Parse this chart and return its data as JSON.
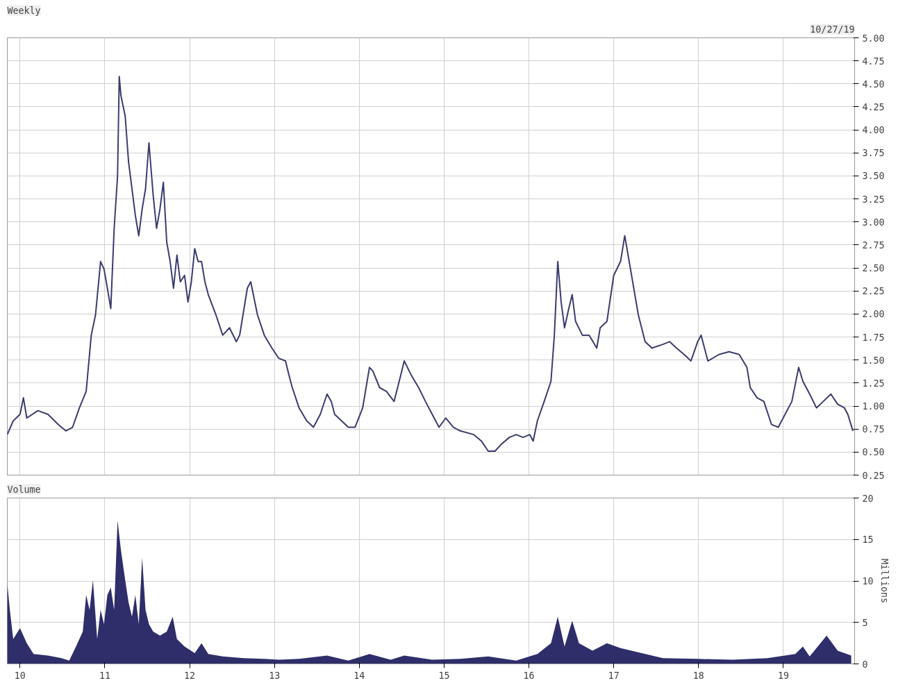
{
  "chart_data": [
    {
      "type": "line",
      "title": "Weekly",
      "annotations": [
        "10/27/19"
      ],
      "tick_labels": "y",
      "grid": true,
      "x": [
        2009.85,
        2009.92,
        2010.0,
        2010.04,
        2010.08,
        2010.21,
        2010.33,
        2010.45,
        2010.54,
        2010.62,
        2010.7,
        2010.78,
        2010.84,
        2010.89,
        2010.95,
        2010.99,
        2011.03,
        2011.07,
        2011.11,
        2011.15,
        2011.17,
        2011.19,
        2011.24,
        2011.28,
        2011.32,
        2011.36,
        2011.4,
        2011.44,
        2011.48,
        2011.52,
        2011.57,
        2011.61,
        2011.65,
        2011.69,
        2011.73,
        2011.77,
        2011.81,
        2011.85,
        2011.89,
        2011.94,
        2011.98,
        2012.02,
        2012.06,
        2012.1,
        2012.14,
        2012.18,
        2012.22,
        2012.31,
        2012.39,
        2012.47,
        2012.55,
        2012.59,
        2012.68,
        2012.72,
        2012.8,
        2012.88,
        2012.97,
        2013.05,
        2013.13,
        2013.17,
        2013.21,
        2013.29,
        2013.38,
        2013.46,
        2013.54,
        2013.62,
        2013.67,
        2013.71,
        2013.79,
        2013.87,
        2013.95,
        2014.04,
        2014.12,
        2014.16,
        2014.24,
        2014.32,
        2014.41,
        2014.49,
        2014.53,
        2014.61,
        2014.7,
        2014.78,
        2014.86,
        2014.94,
        2015.02,
        2015.11,
        2015.19,
        2015.35,
        2015.44,
        2015.52,
        2015.6,
        2015.68,
        2015.77,
        2015.85,
        2015.93,
        2016.01,
        2016.05,
        2016.1,
        2016.18,
        2016.26,
        2016.3,
        2016.34,
        2016.38,
        2016.42,
        2016.47,
        2016.51,
        2016.55,
        2016.63,
        2016.71,
        2016.8,
        2016.84,
        2016.92,
        2017.0,
        2017.08,
        2017.13,
        2017.21,
        2017.29,
        2017.37,
        2017.45,
        2017.58,
        2017.66,
        2017.74,
        2017.83,
        2017.91,
        2017.99,
        2018.03,
        2018.11,
        2018.24,
        2018.36,
        2018.48,
        2018.57,
        2018.61,
        2018.69,
        2018.77,
        2018.86,
        2018.94,
        2019.02,
        2019.1,
        2019.18,
        2019.23,
        2019.31,
        2019.39,
        2019.47,
        2019.56,
        2019.64,
        2019.72,
        2019.76,
        2019.82
      ],
      "series": [
        {
          "color": "#3b3b70",
          "values": [
            0.69,
            0.84,
            0.91,
            1.09,
            0.87,
            0.95,
            0.91,
            0.8,
            0.73,
            0.77,
            0.98,
            1.16,
            1.77,
            1.99,
            2.57,
            2.49,
            2.28,
            2.06,
            2.93,
            3.5,
            4.58,
            4.37,
            4.15,
            3.65,
            3.36,
            3.07,
            2.85,
            3.14,
            3.36,
            3.86,
            3.29,
            2.93,
            3.14,
            3.43,
            2.78,
            2.57,
            2.28,
            2.64,
            2.35,
            2.42,
            2.13,
            2.35,
            2.71,
            2.57,
            2.57,
            2.35,
            2.21,
            1.99,
            1.77,
            1.85,
            1.7,
            1.77,
            2.28,
            2.35,
            1.99,
            1.77,
            1.63,
            1.52,
            1.49,
            1.34,
            1.2,
            0.98,
            0.84,
            0.77,
            0.91,
            1.13,
            1.05,
            0.91,
            0.84,
            0.77,
            0.77,
            0.98,
            1.42,
            1.38,
            1.2,
            1.16,
            1.05,
            1.34,
            1.49,
            1.34,
            1.2,
            1.05,
            0.91,
            0.77,
            0.87,
            0.77,
            0.73,
            0.69,
            0.62,
            0.51,
            0.51,
            0.59,
            0.66,
            0.69,
            0.66,
            0.69,
            0.62,
            0.84,
            1.05,
            1.27,
            1.77,
            2.57,
            2.13,
            1.85,
            2.06,
            2.21,
            1.92,
            1.77,
            1.77,
            1.63,
            1.85,
            1.92,
            2.42,
            2.57,
            2.85,
            2.42,
            1.99,
            1.7,
            1.63,
            1.67,
            1.7,
            1.63,
            1.56,
            1.49,
            1.7,
            1.77,
            1.49,
            1.56,
            1.59,
            1.56,
            1.42,
            1.2,
            1.09,
            1.05,
            0.8,
            0.77,
            0.91,
            1.05,
            1.42,
            1.27,
            1.13,
            0.98,
            1.05,
            1.13,
            1.02,
            0.98,
            0.91,
            0.73
          ]
        }
      ],
      "xlim": [
        2009.85,
        2019.84
      ],
      "xticks": [
        {
          "value": 2010,
          "label": null
        },
        {
          "value": 2011,
          "label": null
        },
        {
          "value": 2012,
          "label": null
        },
        {
          "value": 2013,
          "label": null
        },
        {
          "value": 2014,
          "label": null
        },
        {
          "value": 2015,
          "label": null
        },
        {
          "value": 2016,
          "label": null
        },
        {
          "value": 2017,
          "label": null
        },
        {
          "value": 2018,
          "label": null
        },
        {
          "value": 2019,
          "label": null
        }
      ],
      "ylim": [
        0.25,
        5.0
      ],
      "yticks": [
        {
          "value": 0.25,
          "label": "0.25"
        },
        {
          "value": 0.5,
          "label": "0.50"
        },
        {
          "value": 0.75,
          "label": "0.75"
        },
        {
          "value": 1.0,
          "label": "1.00"
        },
        {
          "value": 1.25,
          "label": "1.25"
        },
        {
          "value": 1.5,
          "label": "1.50"
        },
        {
          "value": 1.75,
          "label": "1.75"
        },
        {
          "value": 2.0,
          "label": "2.00"
        },
        {
          "value": 2.25,
          "label": "2.25"
        },
        {
          "value": 2.5,
          "label": "2.50"
        },
        {
          "value": 2.75,
          "label": "2.75"
        },
        {
          "value": 3.0,
          "label": "3.00"
        },
        {
          "value": 3.25,
          "label": "3.25"
        },
        {
          "value": 3.5,
          "label": "3.50"
        },
        {
          "value": 3.75,
          "label": "3.75"
        },
        {
          "value": 4.0,
          "label": "4.00"
        },
        {
          "value": 4.25,
          "label": "4.25"
        },
        {
          "value": 4.5,
          "label": "4.50"
        },
        {
          "value": 4.75,
          "label": "4.75"
        },
        {
          "value": 5.0,
          "label": "5.00"
        }
      ]
    },
    {
      "type": "area",
      "title": "Volume",
      "ylabel": "Millions",
      "grid": true,
      "x": [
        2009.85,
        2009.88,
        2009.92,
        2010.0,
        2010.08,
        2010.16,
        2010.33,
        2010.49,
        2010.58,
        2010.66,
        2010.74,
        2010.78,
        2010.82,
        2010.86,
        2010.91,
        2010.95,
        2010.99,
        2011.03,
        2011.07,
        2011.11,
        2011.15,
        2011.17,
        2011.19,
        2011.24,
        2011.28,
        2011.32,
        2011.36,
        2011.4,
        2011.44,
        2011.48,
        2011.52,
        2011.57,
        2011.65,
        2011.73,
        2011.8,
        2011.85,
        2011.94,
        2012.06,
        2012.14,
        2012.22,
        2012.39,
        2012.64,
        2012.88,
        2013.05,
        2013.29,
        2013.62,
        2013.87,
        2014.12,
        2014.37,
        2014.53,
        2014.86,
        2015.19,
        2015.52,
        2015.85,
        2016.1,
        2016.26,
        2016.34,
        2016.42,
        2016.51,
        2016.59,
        2016.75,
        2016.92,
        2017.08,
        2017.33,
        2017.58,
        2017.99,
        2018.4,
        2018.81,
        2019.14,
        2019.23,
        2019.31,
        2019.51,
        2019.64,
        2019.8
      ],
      "series": [
        {
          "color": "#2e2e6b",
          "values": [
            9.7,
            6.5,
            3.0,
            4.3,
            2.5,
            1.2,
            1.0,
            0.7,
            0.4,
            2.1,
            3.9,
            8.3,
            6.5,
            10.1,
            3.0,
            6.5,
            4.8,
            8.3,
            9.2,
            6.5,
            17.3,
            15.5,
            13.7,
            10.1,
            7.4,
            5.7,
            8.3,
            4.8,
            12.8,
            6.5,
            4.8,
            3.9,
            3.4,
            3.9,
            5.7,
            3.0,
            2.1,
            1.3,
            2.5,
            1.2,
            0.9,
            0.7,
            0.6,
            0.5,
            0.6,
            1.0,
            0.4,
            1.2,
            0.5,
            1.0,
            0.5,
            0.6,
            0.9,
            0.4,
            1.2,
            2.5,
            5.7,
            2.1,
            5.2,
            2.5,
            1.6,
            2.5,
            1.9,
            1.3,
            0.7,
            0.6,
            0.5,
            0.7,
            1.2,
            2.1,
            0.9,
            3.4,
            1.6,
            1.0
          ]
        }
      ],
      "xlim": [
        2009.85,
        2019.84
      ],
      "xticks": [
        {
          "value": 2010,
          "label": "10"
        },
        {
          "value": 2011,
          "label": "11"
        },
        {
          "value": 2012,
          "label": "12"
        },
        {
          "value": 2013,
          "label": "13"
        },
        {
          "value": 2014,
          "label": "14"
        },
        {
          "value": 2015,
          "label": "15"
        },
        {
          "value": 2016,
          "label": "16"
        },
        {
          "value": 2017,
          "label": "17"
        },
        {
          "value": 2018,
          "label": "18"
        },
        {
          "value": 2019,
          "label": "19"
        }
      ],
      "ylim": [
        0,
        20
      ],
      "yticks": [
        0,
        5,
        10,
        15,
        20
      ]
    }
  ]
}
